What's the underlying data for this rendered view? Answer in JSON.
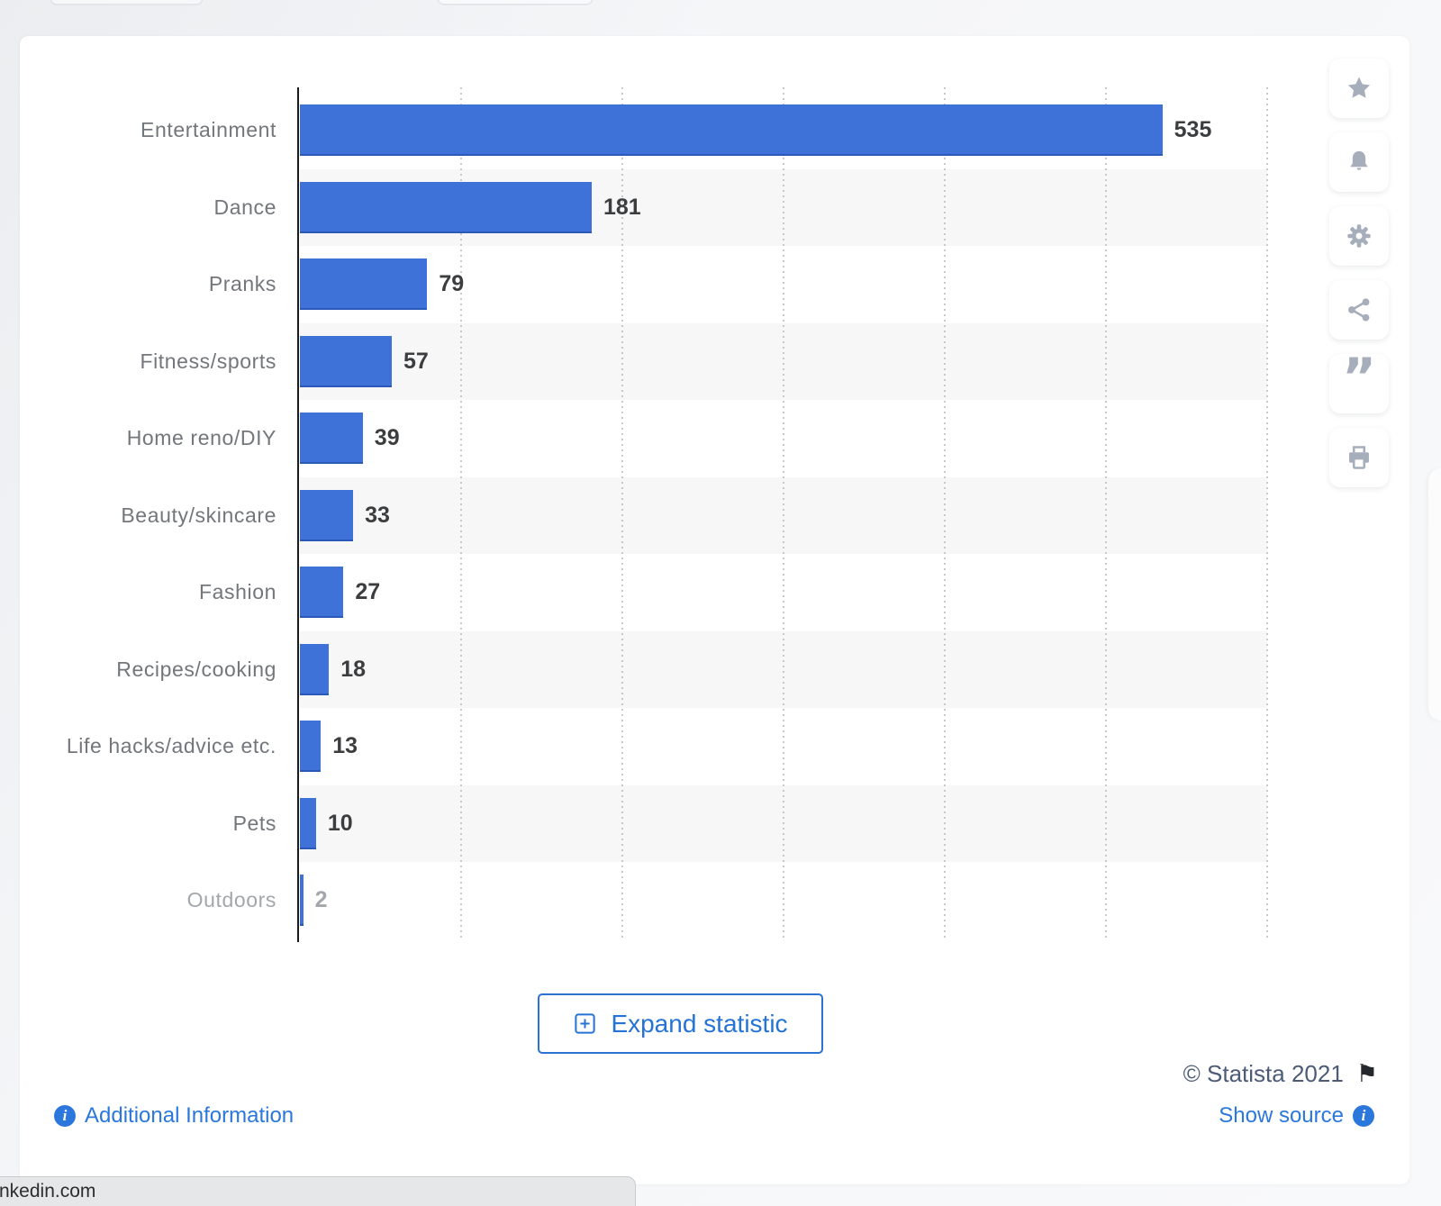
{
  "chart_data": {
    "type": "bar",
    "orientation": "horizontal",
    "title": "",
    "categories": [
      "Entertainment",
      "Dance",
      "Pranks",
      "Fitness/sports",
      "Home reno/DIY",
      "Beauty/skincare",
      "Fashion",
      "Recipes/cooking",
      "Life hacks/advice etc.",
      "Pets",
      "Outdoors"
    ],
    "values": [
      535,
      181,
      79,
      57,
      39,
      33,
      27,
      18,
      13,
      10,
      2
    ],
    "xlabel": "",
    "ylabel": "",
    "xlim": [
      0,
      600
    ],
    "gridline_values": [
      100,
      200,
      300,
      400,
      500,
      600
    ],
    "grid": "dotted-vertical",
    "zebra_striping": true,
    "muted_categories": [
      "Outdoors"
    ],
    "bar_color": "#3e72d8",
    "value_labels_shown": true,
    "legend": "none"
  },
  "toolbar": {
    "icons": [
      "star",
      "bell",
      "gear",
      "share",
      "quote",
      "printer"
    ]
  },
  "expand_button": {
    "label": "Expand statistic"
  },
  "footer": {
    "copyright": "© Statista 2021",
    "additional_information": "Additional Information",
    "show_source": "Show source",
    "link_color": "#2b77dc",
    "copyright_color": "#4c5c77"
  },
  "status_bar": {
    "text": "nkedin.com"
  }
}
